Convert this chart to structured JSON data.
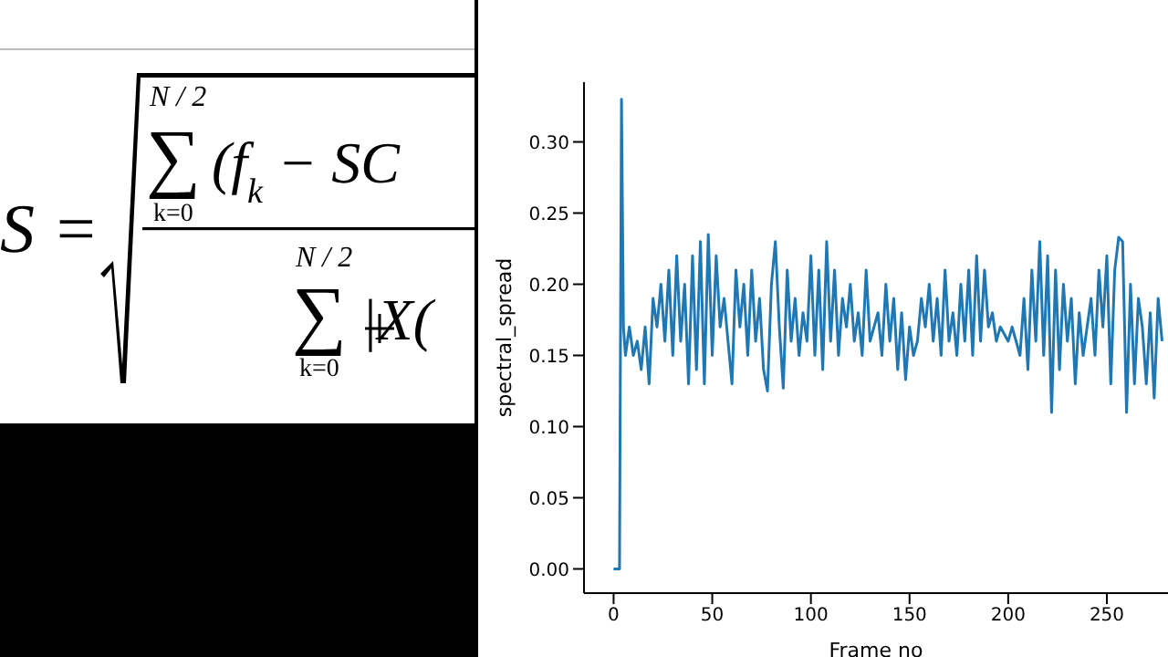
{
  "chart_data": {
    "type": "line",
    "xlabel": "Frame no",
    "ylabel": "spectral_spread",
    "annotations": [
      "S =",
      "N / 2",
      "∑",
      "(f$_{k}$ − SC",
      "k=0",
      "N / 2",
      "∑",
      "|X(",
      "k=0"
    ],
    "x": [
      0,
      1,
      2,
      3,
      4,
      5,
      6,
      8,
      10,
      12,
      14,
      16,
      18,
      20,
      22,
      24,
      26,
      28,
      30,
      32,
      34,
      36,
      38,
      40,
      42,
      44,
      46,
      48,
      50,
      52,
      54,
      56,
      58,
      60,
      62,
      64,
      66,
      68,
      70,
      72,
      74,
      76,
      78,
      80,
      82,
      84,
      86,
      88,
      90,
      92,
      94,
      96,
      98,
      100,
      102,
      104,
      106,
      108,
      110,
      112,
      114,
      116,
      118,
      120,
      122,
      124,
      126,
      128,
      130,
      132,
      134,
      136,
      138,
      140,
      142,
      144,
      146,
      148,
      150,
      152,
      154,
      156,
      158,
      160,
      162,
      164,
      166,
      168,
      170,
      172,
      174,
      176,
      178,
      180,
      182,
      184,
      186,
      188,
      190,
      192,
      194,
      196,
      198,
      200,
      202,
      204,
      206,
      208,
      210,
      212,
      214,
      216,
      218,
      220,
      222,
      224,
      226,
      228,
      230,
      232,
      234,
      236,
      238,
      240,
      242,
      244,
      246,
      248,
      250,
      252,
      254,
      256,
      258,
      260,
      262,
      264,
      266,
      268,
      270,
      272,
      274,
      276,
      278
    ],
    "series": [
      {
        "color": "#1f77b4",
        "values": [
          0,
          0,
          0,
          0,
          0.33,
          0.17,
          0.15,
          0.17,
          0.15,
          0.16,
          0.14,
          0.17,
          0.13,
          0.19,
          0.17,
          0.2,
          0.16,
          0.21,
          0.15,
          0.22,
          0.16,
          0.2,
          0.13,
          0.22,
          0.14,
          0.23,
          0.13,
          0.235,
          0.15,
          0.22,
          0.17,
          0.19,
          0.16,
          0.13,
          0.21,
          0.17,
          0.2,
          0.15,
          0.21,
          0.16,
          0.19,
          0.14,
          0.125,
          0.2,
          0.23,
          0.17,
          0.127,
          0.21,
          0.16,
          0.19,
          0.15,
          0.18,
          0.16,
          0.22,
          0.15,
          0.21,
          0.14,
          0.23,
          0.16,
          0.21,
          0.15,
          0.19,
          0.17,
          0.2,
          0.16,
          0.18,
          0.15,
          0.21,
          0.16,
          0.17,
          0.18,
          0.15,
          0.2,
          0.16,
          0.19,
          0.14,
          0.18,
          0.133,
          0.17,
          0.15,
          0.16,
          0.19,
          0.17,
          0.2,
          0.16,
          0.19,
          0.15,
          0.21,
          0.16,
          0.18,
          0.15,
          0.2,
          0.16,
          0.21,
          0.15,
          0.22,
          0.16,
          0.21,
          0.17,
          0.18,
          0.16,
          0.17,
          0.165,
          0.16,
          0.17,
          0.16,
          0.15,
          0.19,
          0.14,
          0.21,
          0.16,
          0.23,
          0.15,
          0.22,
          0.11,
          0.21,
          0.14,
          0.2,
          0.16,
          0.19,
          0.13,
          0.18,
          0.15,
          0.17,
          0.19,
          0.15,
          0.21,
          0.17,
          0.22,
          0.13,
          0.21,
          0.233,
          0.23,
          0.11,
          0.2,
          0.13,
          0.19,
          0.17,
          0.13,
          0.18,
          0.12,
          0.19,
          0.16
        ]
      }
    ],
    "xlim": [
      -15,
      281
    ],
    "xticks": [
      0,
      50,
      100,
      150,
      200,
      250
    ],
    "ylim": [
      -0.017,
      0.342
    ],
    "yticks": [
      {
        "value": 0,
        "label": "0.00"
      },
      {
        "value": 0.05,
        "label": "0.05"
      },
      {
        "value": 0.1,
        "label": "0.10"
      },
      {
        "value": 0.15,
        "label": "0.15"
      },
      {
        "value": 0.2,
        "label": "0.20"
      },
      {
        "value": 0.25,
        "label": "0.25"
      },
      {
        "value": 0.3,
        "label": "0.30"
      }
    ],
    "grid": false,
    "legend": false,
    "marker": "none",
    "line_style": "solid"
  }
}
